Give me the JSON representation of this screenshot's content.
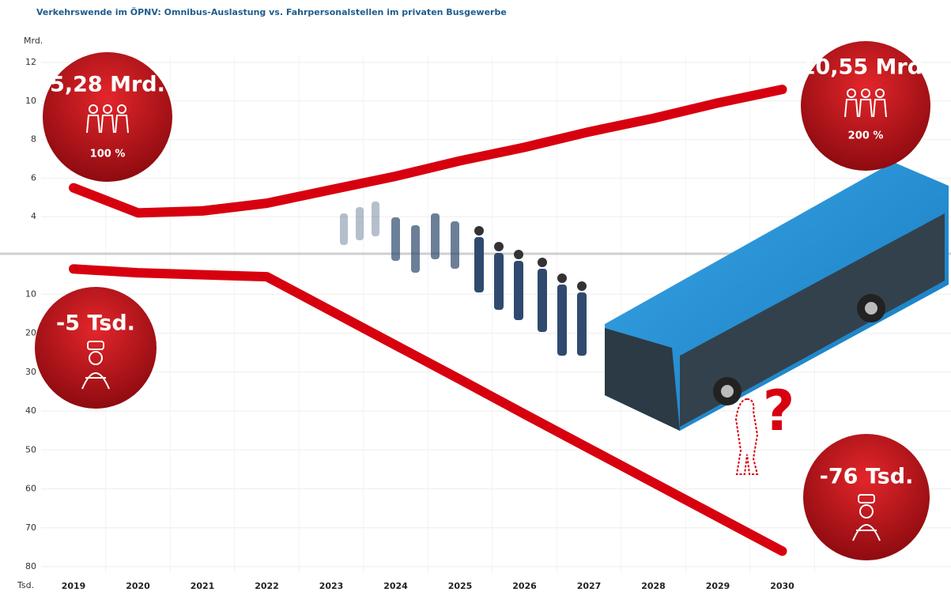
{
  "chart_data": {
    "type": "line",
    "title": "Verkehrswende im ÖPNV: Omnibus-Auslastung vs. Fahrpersonalstellen im privaten Busgewerbe",
    "categories": [
      "2019",
      "2020",
      "2021",
      "2022",
      "2023",
      "2024",
      "2025",
      "2026",
      "2027",
      "2028",
      "2029",
      "2030"
    ],
    "ylabel": "Mrd.",
    "ylim": [
      2,
      12
    ],
    "yticks": [
      4,
      6,
      8,
      10,
      12
    ],
    "y2label": "Tsd.",
    "y2lim": [
      0,
      80
    ],
    "y2ticks": [
      10,
      20,
      30,
      40,
      50,
      60,
      70,
      80
    ],
    "y2_inverted": true,
    "grid": true,
    "series": [
      {
        "name": "Omnibus-Auslastung",
        "color": "#d7000f",
        "values": [
          5.5,
          4.2,
          4.3,
          4.7,
          5.4,
          6.1,
          6.9,
          7.6,
          8.4,
          9.1,
          9.9,
          10.6
        ]
      },
      {
        "name": "Fahrpersonalstellen",
        "color": "#d7000f",
        "axis": "y2",
        "values": [
          3.5,
          4.5,
          5,
          5.5,
          14.3,
          23.1,
          31.9,
          40.8,
          49.6,
          58.4,
          67.2,
          76
        ]
      }
    ],
    "annotations": [
      {
        "label": "5,28 Mrd.",
        "note": "100 %"
      },
      {
        "label": "10,55 Mrd.",
        "note": "200 %"
      },
      {
        "label": "-5 Tsd."
      },
      {
        "label": "-76 Tsd."
      }
    ]
  }
}
